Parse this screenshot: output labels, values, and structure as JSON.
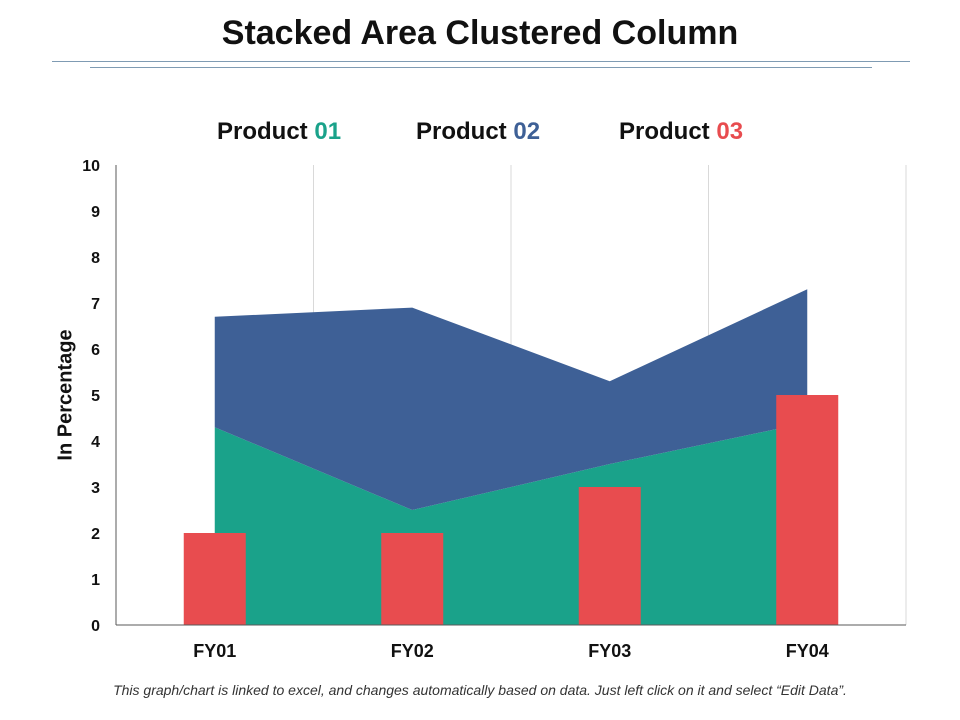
{
  "page": {
    "title": "Stacked Area Clustered Column",
    "footnote": "This graph/chart is linked to excel, and changes automatically based on data. Just left click on it and select “Edit Data”."
  },
  "legend": [
    {
      "prefix": "Product ",
      "number": "01",
      "color": "#1aa28a"
    },
    {
      "prefix": "Product ",
      "number": "02",
      "color": "#3e6096"
    },
    {
      "prefix": "Product ",
      "number": "03",
      "color": "#e84c4f"
    }
  ],
  "chart_data": {
    "type": "bar",
    "title": "Stacked Area Clustered Column",
    "xlabel": "",
    "ylabel": "In Percentage",
    "ylim": [
      0,
      10
    ],
    "yticks": [
      "0",
      "1",
      "2",
      "3",
      "4",
      "5",
      "6",
      "7",
      "8",
      "9",
      "10"
    ],
    "categories": [
      "FY01",
      "FY02",
      "FY03",
      "FY04"
    ],
    "grid": "vertical",
    "series": [
      {
        "name": "Product 01",
        "type": "area",
        "stacked": true,
        "color": "#1aa28a",
        "values": [
          4.3,
          2.5,
          3.5,
          4.4
        ]
      },
      {
        "name": "Product 02",
        "type": "area",
        "stacked": true,
        "color": "#3e6096",
        "values": [
          2.4,
          4.4,
          1.8,
          2.9
        ]
      },
      {
        "name": "Product 03",
        "type": "column",
        "color": "#e84c4f",
        "values": [
          2,
          2,
          3,
          5
        ]
      }
    ]
  }
}
